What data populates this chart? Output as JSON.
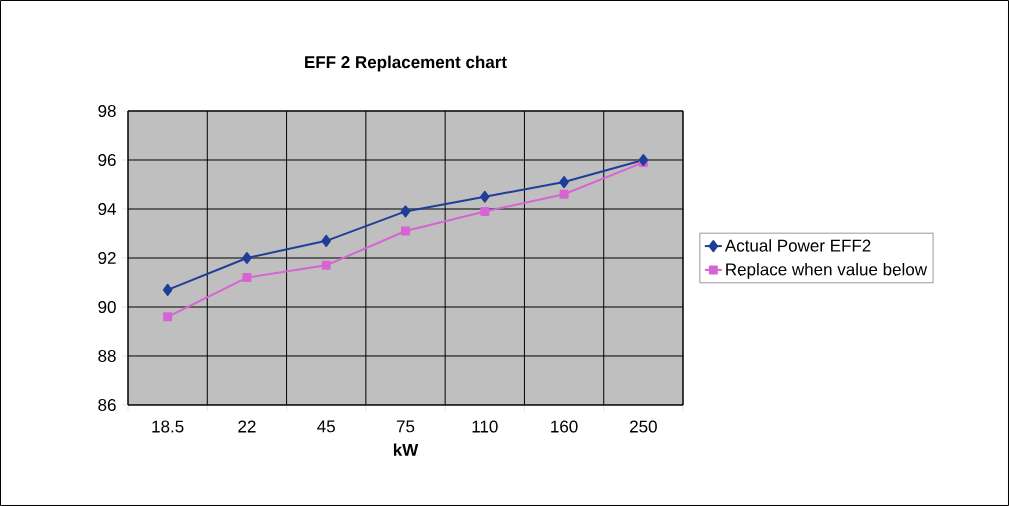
{
  "chart_data": {
    "type": "line",
    "title": "EFF 2 Replacement chart",
    "xlabel": "kW",
    "categories": [
      "18.5",
      "22",
      "45",
      "75",
      "110",
      "160",
      "250"
    ],
    "series": [
      {
        "name": "Actual Power EFF2",
        "color": "#203e98",
        "marker": "diamond",
        "values": [
          90.7,
          92.0,
          92.7,
          93.9,
          94.5,
          95.1,
          96.0
        ]
      },
      {
        "name": "Replace when value below",
        "color": "#d664d4",
        "marker": "square",
        "values": [
          89.6,
          91.2,
          91.7,
          93.1,
          93.9,
          94.6,
          95.9
        ]
      }
    ],
    "ylim": [
      86,
      98
    ],
    "yticks": [
      86,
      88,
      90,
      92,
      94,
      96,
      98
    ],
    "grid": true,
    "legend": "right"
  }
}
